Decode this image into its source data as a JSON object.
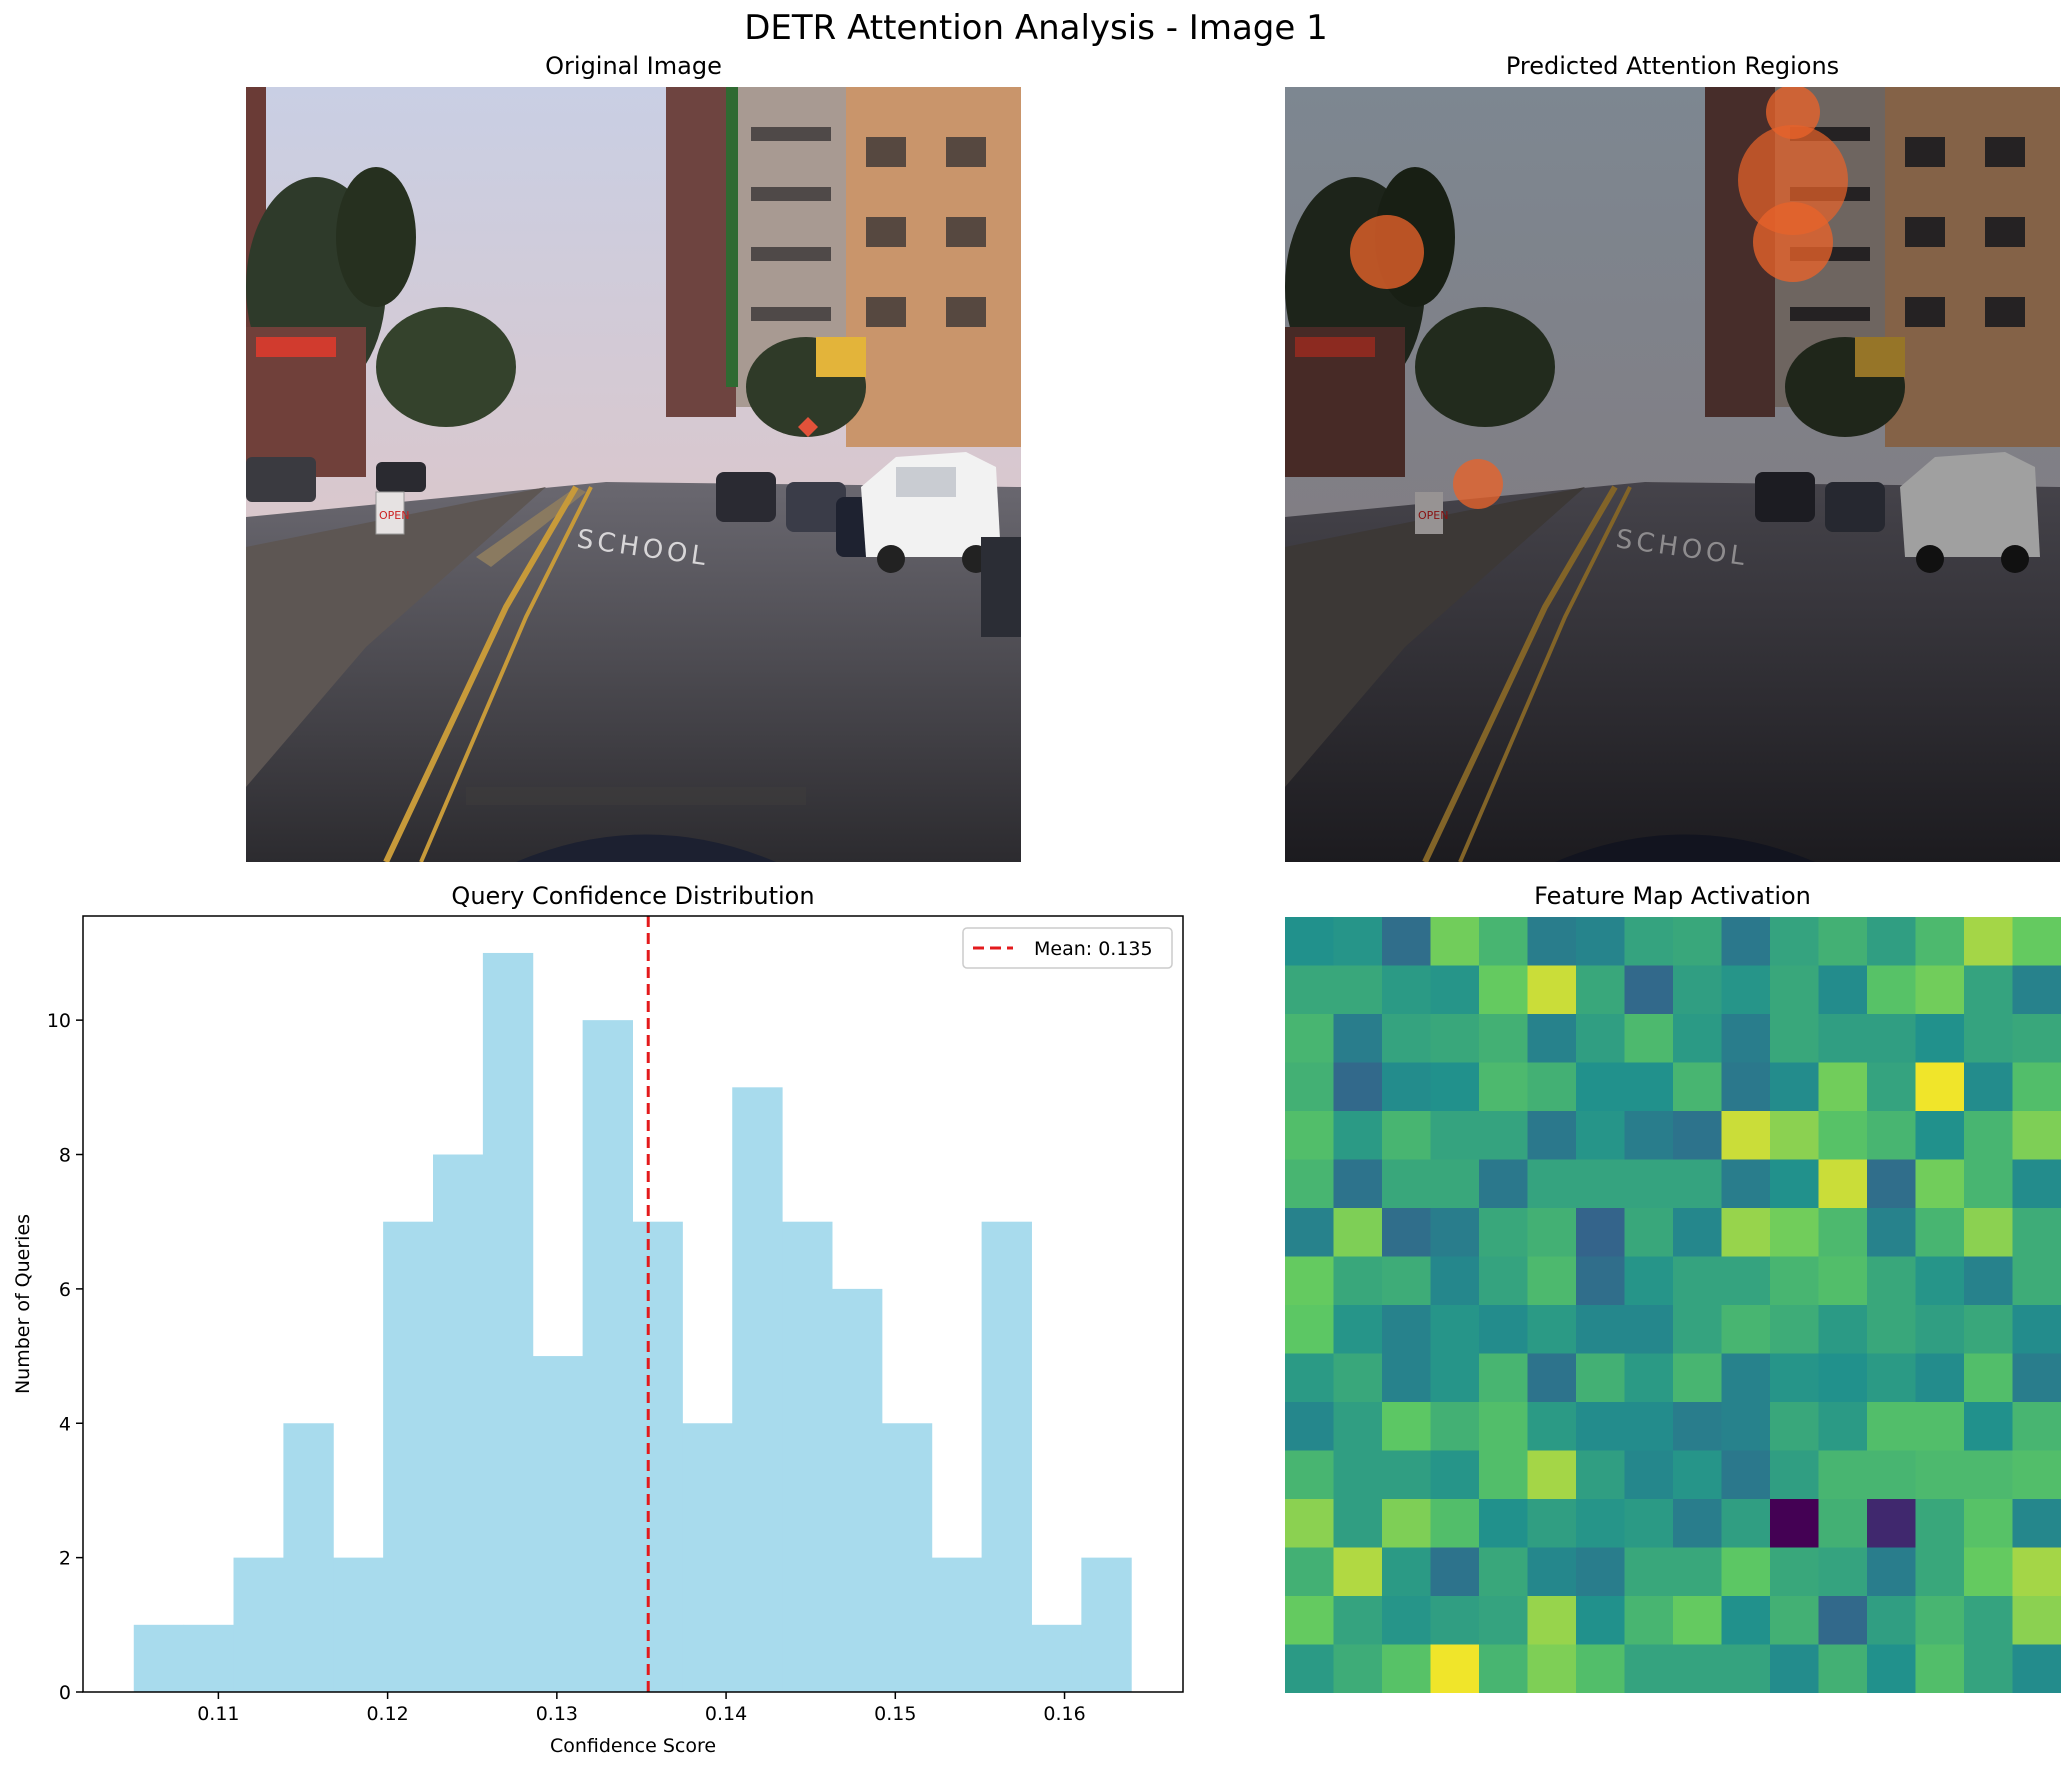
{
  "figure": {
    "title": "DETR Attention Analysis - Image 1"
  },
  "panels": {
    "original": {
      "title": "Original Image",
      "road_text": "SCHOOL",
      "sign_text": "OPEN"
    },
    "attention": {
      "title": "Predicted Attention Regions",
      "road_text": "SCHOOL",
      "sign_text": "OPEN"
    },
    "histogram": {
      "title": "Query Confidence Distribution"
    },
    "feature_map": {
      "title": "Feature Map Activation"
    }
  },
  "colors": {
    "bar": "#a8dbed",
    "mean_line": "#e31a1c",
    "attention_blob": "#e8632a"
  },
  "chart_data": [
    {
      "type": "bar",
      "title": "Query Confidence Distribution",
      "xlabel": "Confidence Score",
      "ylabel": "Number of Queries",
      "bin_start": 0.105,
      "bin_width": 0.002947,
      "values": [
        1,
        1,
        2,
        4,
        2,
        7,
        8,
        11,
        5,
        10,
        7,
        4,
        9,
        7,
        6,
        4,
        2,
        7,
        1,
        2
      ],
      "xlim": [
        0.102,
        0.167
      ],
      "ylim": [
        0,
        11.55
      ],
      "xticks": [
        0.11,
        0.12,
        0.13,
        0.14,
        0.15,
        0.16
      ],
      "xtick_labels": [
        "0.11",
        "0.12",
        "0.13",
        "0.14",
        "0.15",
        "0.16"
      ],
      "yticks": [
        0,
        2,
        4,
        6,
        8,
        10
      ],
      "ytick_labels": [
        "0",
        "2",
        "4",
        "6",
        "8",
        "10"
      ],
      "mean": 0.1354,
      "legend": "Mean: 0.135",
      "legend_position": "top-right"
    },
    {
      "type": "heatmap",
      "title": "Feature Map Activation",
      "colormap": "viridis",
      "vmin": 0,
      "vmax": 1,
      "rows": 16,
      "cols": 16,
      "values": [
        [
          0.5,
          0.52,
          0.36,
          0.78,
          0.66,
          0.42,
          0.45,
          0.58,
          0.6,
          0.4,
          0.58,
          0.64,
          0.56,
          0.68,
          0.86,
          0.76
        ],
        [
          0.6,
          0.6,
          0.54,
          0.52,
          0.76,
          0.92,
          0.6,
          0.34,
          0.56,
          0.52,
          0.6,
          0.48,
          0.72,
          0.78,
          0.58,
          0.44
        ],
        [
          0.66,
          0.42,
          0.58,
          0.6,
          0.64,
          0.44,
          0.56,
          0.68,
          0.54,
          0.42,
          0.6,
          0.56,
          0.56,
          0.5,
          0.58,
          0.6
        ],
        [
          0.64,
          0.34,
          0.48,
          0.5,
          0.68,
          0.64,
          0.5,
          0.5,
          0.66,
          0.4,
          0.48,
          0.78,
          0.58,
          0.98,
          0.48,
          0.7
        ],
        [
          0.7,
          0.54,
          0.66,
          0.58,
          0.58,
          0.4,
          0.52,
          0.42,
          0.38,
          0.92,
          0.82,
          0.72,
          0.66,
          0.5,
          0.66,
          0.8
        ],
        [
          0.66,
          0.38,
          0.6,
          0.6,
          0.4,
          0.58,
          0.58,
          0.58,
          0.58,
          0.42,
          0.5,
          0.92,
          0.36,
          0.78,
          0.66,
          0.48
        ],
        [
          0.44,
          0.8,
          0.36,
          0.42,
          0.6,
          0.64,
          0.32,
          0.6,
          0.46,
          0.84,
          0.78,
          0.68,
          0.44,
          0.66,
          0.82,
          0.62
        ],
        [
          0.76,
          0.6,
          0.62,
          0.46,
          0.58,
          0.68,
          0.36,
          0.52,
          0.58,
          0.58,
          0.66,
          0.7,
          0.6,
          0.52,
          0.44,
          0.62
        ],
        [
          0.74,
          0.52,
          0.44,
          0.52,
          0.48,
          0.54,
          0.46,
          0.46,
          0.58,
          0.66,
          0.62,
          0.54,
          0.6,
          0.56,
          0.6,
          0.48
        ],
        [
          0.54,
          0.6,
          0.44,
          0.52,
          0.66,
          0.38,
          0.64,
          0.54,
          0.66,
          0.44,
          0.52,
          0.5,
          0.54,
          0.48,
          0.7,
          0.42
        ],
        [
          0.46,
          0.56,
          0.74,
          0.64,
          0.7,
          0.54,
          0.48,
          0.48,
          0.42,
          0.44,
          0.6,
          0.54,
          0.7,
          0.7,
          0.5,
          0.66
        ],
        [
          0.66,
          0.56,
          0.56,
          0.52,
          0.7,
          0.86,
          0.56,
          0.46,
          0.52,
          0.4,
          0.56,
          0.66,
          0.66,
          0.68,
          0.68,
          0.7
        ],
        [
          0.82,
          0.56,
          0.8,
          0.7,
          0.5,
          0.56,
          0.52,
          0.54,
          0.42,
          0.56,
          0.0,
          0.64,
          0.12,
          0.6,
          0.72,
          0.46
        ],
        [
          0.64,
          0.88,
          0.54,
          0.38,
          0.6,
          0.46,
          0.42,
          0.6,
          0.6,
          0.74,
          0.6,
          0.58,
          0.42,
          0.6,
          0.76,
          0.86
        ],
        [
          0.76,
          0.58,
          0.52,
          0.56,
          0.58,
          0.84,
          0.5,
          0.66,
          0.76,
          0.5,
          0.64,
          0.34,
          0.56,
          0.66,
          0.58,
          0.82
        ],
        [
          0.54,
          0.62,
          0.72,
          0.98,
          0.66,
          0.8,
          0.7,
          0.58,
          0.58,
          0.58,
          0.48,
          0.64,
          0.5,
          0.7,
          0.58,
          0.48
        ]
      ]
    }
  ]
}
